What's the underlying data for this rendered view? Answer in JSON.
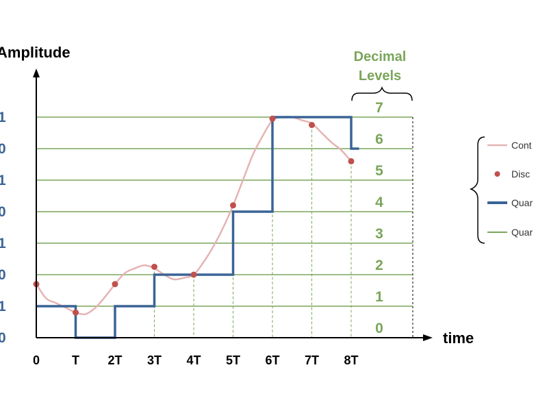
{
  "chart_data": {
    "type": "line",
    "ylabel": "Amplitude",
    "xlabel": "time",
    "x_ticks": [
      "0",
      "T",
      "2T",
      "3T",
      "4T",
      "5T",
      "6T",
      "7T",
      "8T"
    ],
    "binary_level_labels": [
      "0",
      "1",
      "0",
      "1",
      "0",
      "1",
      "0",
      "1"
    ],
    "decimal_title_line1": "Decimal",
    "decimal_title_line2": "Levels",
    "decimal_levels": [
      "0",
      "1",
      "2",
      "3",
      "4",
      "5",
      "6",
      "7"
    ],
    "legend": [
      "Cont",
      "Disc",
      "Quar",
      "Quar"
    ],
    "series": [
      {
        "name": "Cont",
        "color": "#e6b3b3",
        "x": [
          0,
          0.25,
          0.5,
          0.75,
          1,
          1.25,
          1.5,
          1.75,
          2,
          2.25,
          2.5,
          2.75,
          3,
          3.25,
          3.5,
          3.75,
          4,
          4.25,
          4.5,
          4.75,
          5,
          5.25,
          5.5,
          5.75,
          6,
          6.25,
          6.5,
          6.75,
          7,
          7.25,
          7.5,
          7.75,
          8
        ],
        "y": [
          1.7,
          1.25,
          1.1,
          0.95,
          0.8,
          0.75,
          0.95,
          1.3,
          1.7,
          2.05,
          2.2,
          2.3,
          2.2,
          2.0,
          1.85,
          1.9,
          2.0,
          2.4,
          2.9,
          3.5,
          4.2,
          5.0,
          5.8,
          6.4,
          6.9,
          7.0,
          7.0,
          6.9,
          6.8,
          6.5,
          6.2,
          5.95,
          5.6
        ]
      },
      {
        "name": "Disc",
        "color": "#c0504d",
        "x": [
          0,
          1,
          2,
          3,
          4,
          5,
          6,
          7,
          8
        ],
        "y": [
          1.7,
          0.8,
          1.7,
          2.25,
          2.0,
          4.2,
          6.95,
          6.75,
          5.6
        ]
      },
      {
        "name": "Quar",
        "color": "#3a6496",
        "steps": [
          {
            "x0": 0,
            "x1": 1,
            "level": 1
          },
          {
            "x0": 1,
            "x1": 2,
            "level": 0
          },
          {
            "x0": 2,
            "x1": 3,
            "level": 1
          },
          {
            "x0": 3,
            "x1": 5,
            "level": 2
          },
          {
            "x0": 5,
            "x1": 6,
            "level": 4
          },
          {
            "x0": 6,
            "x1": 8,
            "level": 7
          },
          {
            "x0": 8,
            "x1": 8.2,
            "level": 6
          }
        ]
      },
      {
        "name": "Quar",
        "color": "#7aa55a",
        "levels": [
          0,
          1,
          2,
          3,
          4,
          5,
          6,
          7
        ]
      }
    ],
    "xlim": [
      0,
      9.6
    ],
    "ylim": [
      0,
      7
    ]
  },
  "colors": {
    "axis": "#000000",
    "binary_label": "#3a6496",
    "decimal_label": "#7aa55a",
    "grid": "#7aa55a",
    "dashed_guide": "#7aa55a",
    "right_border": "#000000"
  }
}
